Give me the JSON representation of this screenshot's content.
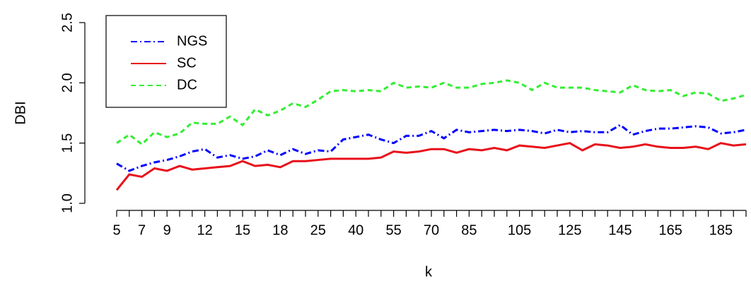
{
  "chart_data": {
    "type": "line",
    "x_label": "k",
    "y_label": "DBI",
    "categories": [
      "5",
      null,
      "7",
      null,
      "9",
      null,
      null,
      "12",
      null,
      null,
      "15",
      null,
      null,
      "18",
      null,
      null,
      "25",
      null,
      null,
      "40",
      null,
      null,
      "55",
      null,
      null,
      "70",
      null,
      null,
      "85",
      null,
      null,
      null,
      "105",
      null,
      null,
      null,
      "125",
      null,
      null,
      null,
      "145",
      null,
      null,
      null,
      "165",
      null,
      null,
      null,
      "185",
      null,
      null
    ],
    "ylim": [
      1.0,
      2.5
    ],
    "yticks": [
      {
        "value": 1.0,
        "label": "1.0"
      },
      {
        "value": 1.5,
        "label": "1.5"
      },
      {
        "value": 2.0,
        "label": "2.0"
      },
      {
        "value": 2.5,
        "label": "2.5"
      }
    ],
    "legend": "top-left",
    "series": [
      {
        "name": "NGS",
        "color": "#0000ff",
        "linestyle": "dashdot",
        "values": [
          1.33,
          1.27,
          1.31,
          1.34,
          1.36,
          1.39,
          1.43,
          1.45,
          1.38,
          1.4,
          1.37,
          1.39,
          1.44,
          1.4,
          1.45,
          1.41,
          1.44,
          1.43,
          1.53,
          1.55,
          1.57,
          1.53,
          1.5,
          1.56,
          1.56,
          1.6,
          1.54,
          1.61,
          1.59,
          1.6,
          1.61,
          1.6,
          1.61,
          1.6,
          1.58,
          1.61,
          1.59,
          1.6,
          1.59,
          1.59,
          1.65,
          1.57,
          1.6,
          1.62,
          1.62,
          1.63,
          1.64,
          1.63,
          1.58,
          1.59,
          1.61
        ]
      },
      {
        "name": "SC",
        "color": "#e8101a",
        "linestyle": "solid",
        "values": [
          1.11,
          1.24,
          1.22,
          1.29,
          1.27,
          1.31,
          1.28,
          1.29,
          1.3,
          1.31,
          1.35,
          1.31,
          1.32,
          1.3,
          1.35,
          1.35,
          1.36,
          1.37,
          1.37,
          1.37,
          1.37,
          1.38,
          1.43,
          1.42,
          1.43,
          1.45,
          1.45,
          1.42,
          1.45,
          1.44,
          1.46,
          1.44,
          1.48,
          1.47,
          1.46,
          1.48,
          1.5,
          1.44,
          1.49,
          1.48,
          1.46,
          1.47,
          1.49,
          1.47,
          1.46,
          1.46,
          1.47,
          1.45,
          1.5,
          1.48,
          1.49
        ]
      },
      {
        "name": "DC",
        "color": "#33ee33",
        "linestyle": "dashed",
        "values": [
          1.5,
          1.57,
          1.49,
          1.59,
          1.55,
          1.58,
          1.67,
          1.66,
          1.66,
          1.72,
          1.65,
          1.78,
          1.73,
          1.77,
          1.83,
          1.8,
          1.86,
          1.93,
          1.94,
          1.93,
          1.94,
          1.93,
          2.0,
          1.96,
          1.97,
          1.96,
          2.0,
          1.96,
          1.96,
          1.99,
          2.0,
          2.02,
          2.0,
          1.94,
          2.0,
          1.96,
          1.96,
          1.96,
          1.94,
          1.93,
          1.92,
          1.98,
          1.94,
          1.93,
          1.94,
          1.89,
          1.92,
          1.91,
          1.85,
          1.87,
          1.9
        ]
      }
    ]
  }
}
